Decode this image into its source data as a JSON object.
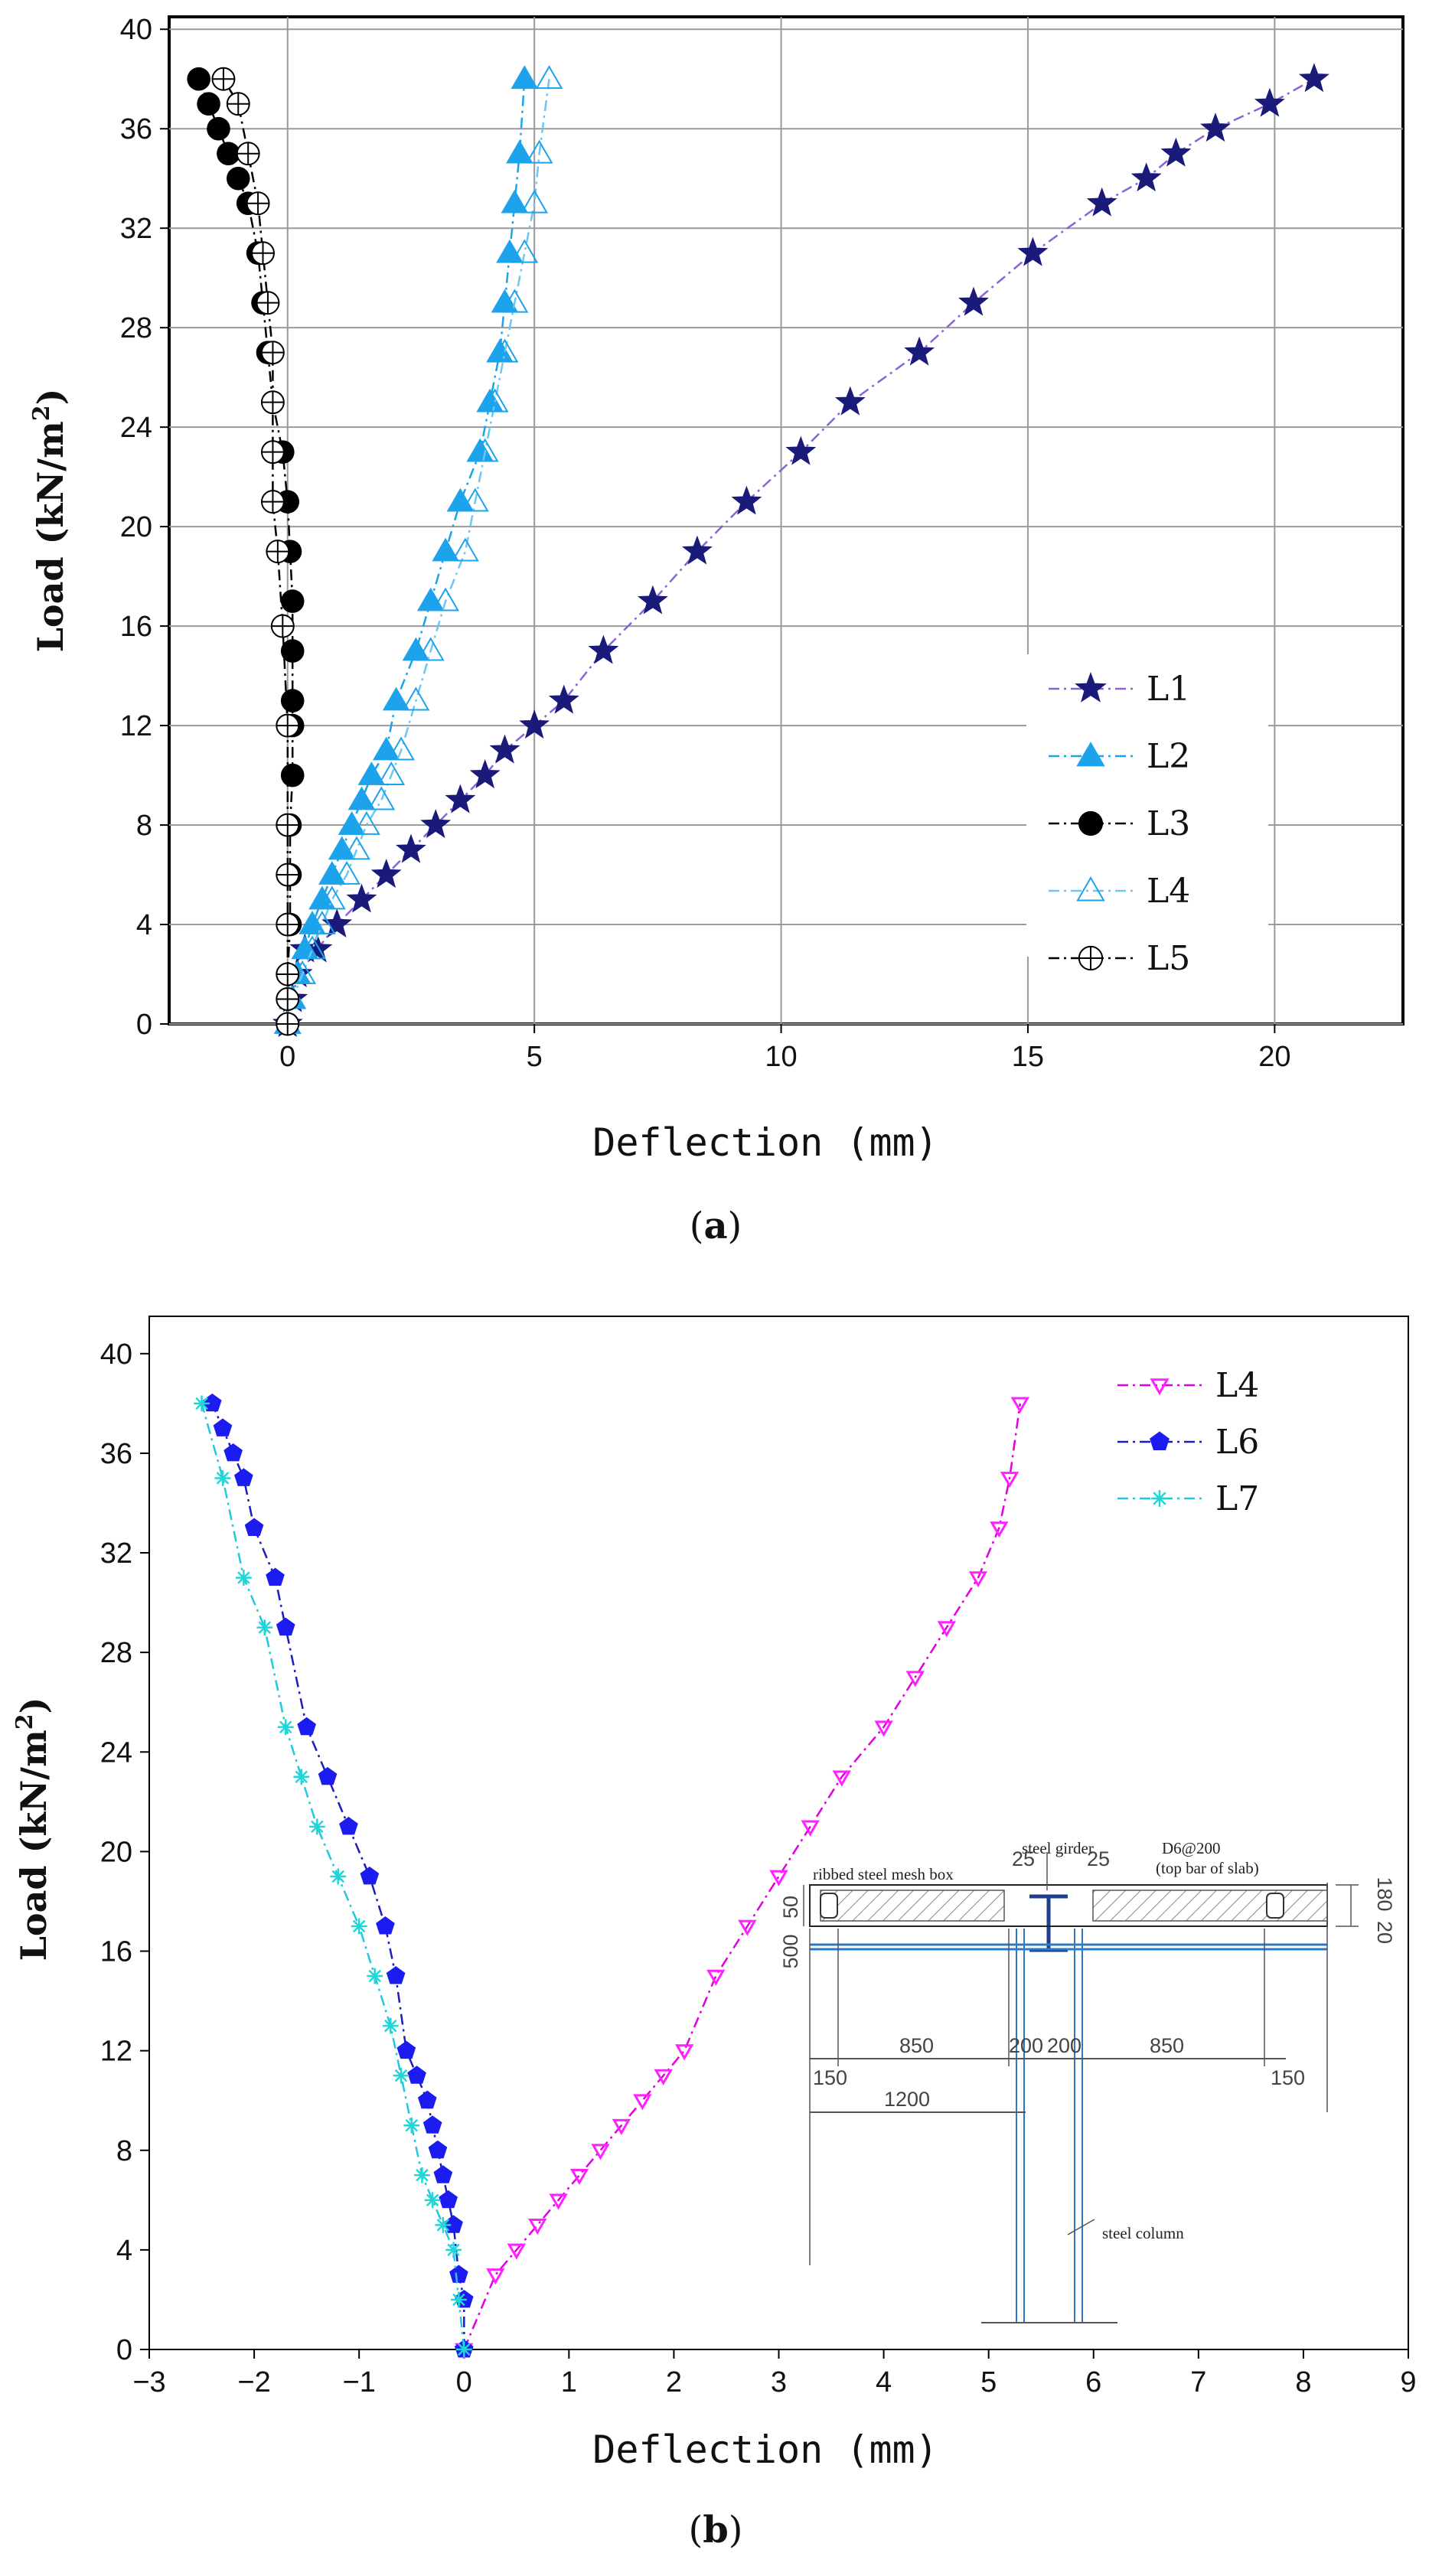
{
  "chart_data": [
    {
      "panel": "a",
      "type": "line",
      "xlabel": "Deflection (mm)",
      "ylabel": "Load (kN/m",
      "ylabel_sup": "2",
      "ylabel_end": ")",
      "xlim": [
        -2.4,
        22.6
      ],
      "ylim": [
        0,
        40.5
      ],
      "xticks": [
        0,
        5,
        10,
        15,
        20
      ],
      "yticks": [
        0,
        4,
        8,
        12,
        16,
        20,
        24,
        28,
        32,
        36,
        40
      ],
      "grid": true,
      "legend": "bottom-right",
      "series": [
        {
          "name": "L1",
          "color": "#1a1a7a",
          "line": "#8a64d6",
          "marker": "star",
          "x": [
            0,
            0.1,
            0.2,
            0.35,
            0.6,
            1.0,
            1.5,
            2.0,
            2.5,
            3.0,
            3.5,
            4.0,
            4.4,
            5.0,
            5.6,
            6.4,
            7.4,
            8.3,
            9.3,
            10.4,
            11.4,
            12.8,
            13.9,
            15.1,
            16.5,
            17.4,
            18.0,
            18.8,
            19.9,
            20.8
          ],
          "y": [
            0,
            1,
            2,
            3,
            3,
            4,
            5,
            6,
            7,
            8,
            9,
            10,
            11,
            12,
            13,
            15,
            17,
            19,
            21,
            23,
            25,
            27,
            29,
            31,
            33,
            34,
            35,
            36,
            37,
            38
          ]
        },
        {
          "name": "L2",
          "color": "#1ca3ec",
          "line": "#1ca3ec",
          "marker": "triangle",
          "x": [
            0,
            0.1,
            0.2,
            0.35,
            0.5,
            0.7,
            0.9,
            1.1,
            1.3,
            1.5,
            1.7,
            2.0,
            2.2,
            2.6,
            2.9,
            3.2,
            3.5,
            3.9,
            4.1,
            4.3,
            4.4,
            4.5,
            4.6,
            4.7,
            4.8
          ],
          "y": [
            0,
            1,
            2,
            3,
            4,
            5,
            6,
            7,
            8,
            9,
            10,
            11,
            13,
            15,
            17,
            19,
            21,
            23,
            25,
            27,
            29,
            31,
            33,
            35,
            38
          ]
        },
        {
          "name": "L3",
          "color": "#000000",
          "line": "#000000",
          "marker": "circle",
          "x": [
            0,
            0.0,
            0.0,
            0.05,
            0.05,
            0.05,
            0.1,
            0.1,
            0.1,
            0.1,
            0.1,
            0.05,
            0.0,
            -0.1,
            -0.3,
            -0.4,
            -0.5,
            -0.6,
            -0.8,
            -1.0,
            -1.2,
            -1.4,
            -1.6,
            -1.8
          ],
          "y": [
            0,
            1,
            2,
            4,
            6,
            8,
            10,
            12,
            13,
            15,
            17,
            19,
            21,
            23,
            25,
            27,
            29,
            31,
            33,
            34,
            35,
            36,
            37,
            38
          ]
        },
        {
          "name": "L4",
          "color": "#1ca3ec",
          "line": "#6cc6f2",
          "marker": "triangle-open",
          "x": [
            0,
            0.1,
            0.3,
            0.5,
            0.7,
            0.9,
            1.2,
            1.4,
            1.6,
            1.9,
            2.1,
            2.3,
            2.6,
            2.9,
            3.2,
            3.6,
            3.8,
            4.0,
            4.2,
            4.4,
            4.6,
            4.8,
            5.0,
            5.1,
            5.3
          ],
          "y": [
            0,
            1,
            2,
            3,
            4,
            5,
            6,
            7,
            8,
            9,
            10,
            11,
            13,
            15,
            17,
            19,
            21,
            23,
            25,
            27,
            29,
            31,
            33,
            35,
            38
          ]
        },
        {
          "name": "L5",
          "color": "#000000",
          "line": "#000000",
          "marker": "circle-plus",
          "x": [
            0,
            0.0,
            0.0,
            0.0,
            0.0,
            0.0,
            0.0,
            -0.1,
            -0.2,
            -0.3,
            -0.3,
            -0.3,
            -0.3,
            -0.4,
            -0.5,
            -0.6,
            -0.8,
            -1.0,
            -1.3
          ],
          "y": [
            0,
            1,
            2,
            4,
            6,
            8,
            12,
            16,
            19,
            21,
            23,
            25,
            27,
            29,
            31,
            33,
            35,
            37,
            38
          ]
        }
      ]
    },
    {
      "panel": "b",
      "type": "line",
      "xlabel": "Deflection (mm)",
      "ylabel": "Load (kN/m",
      "ylabel_sup": "2",
      "ylabel_end": ")",
      "xlim": [
        -3,
        9
      ],
      "ylim": [
        0,
        41.5
      ],
      "xticks": [
        -3,
        -2,
        -1,
        0,
        1,
        2,
        3,
        4,
        5,
        6,
        7,
        8,
        9
      ],
      "yticks": [
        0,
        4,
        8,
        12,
        16,
        20,
        24,
        28,
        32,
        36,
        40
      ],
      "grid": false,
      "legend": "top-right",
      "series": [
        {
          "name": "L4",
          "color": "#ff22ff",
          "line": "#e000e0",
          "marker": "triangle-down",
          "x": [
            0.0,
            0.3,
            0.5,
            0.7,
            0.9,
            1.1,
            1.3,
            1.5,
            1.7,
            1.9,
            2.1,
            2.4,
            2.7,
            3.0,
            3.3,
            3.6,
            4.0,
            4.3,
            4.6,
            4.9,
            5.1,
            5.2,
            5.3
          ],
          "y": [
            0,
            3,
            4,
            5,
            6,
            7,
            8,
            9,
            10,
            11,
            12,
            15,
            17,
            19,
            21,
            23,
            25,
            27,
            29,
            31,
            33,
            35,
            38
          ]
        },
        {
          "name": "L6",
          "color": "#1c1cf0",
          "line": "#1c1cbf",
          "marker": "pentagon",
          "x": [
            0.0,
            0.0,
            -0.05,
            -0.1,
            -0.15,
            -0.2,
            -0.25,
            -0.3,
            -0.35,
            -0.45,
            -0.55,
            -0.65,
            -0.75,
            -0.9,
            -1.1,
            -1.3,
            -1.5,
            -1.7,
            -1.8,
            -2.0,
            -2.1,
            -2.2,
            -2.3,
            -2.4
          ],
          "y": [
            0,
            2,
            3,
            5,
            6,
            7,
            8,
            9,
            10,
            11,
            12,
            15,
            17,
            19,
            21,
            23,
            25,
            29,
            31,
            33,
            35,
            36,
            37,
            38
          ]
        },
        {
          "name": "L7",
          "color": "#22d6d6",
          "line": "#22c8e0",
          "marker": "asterisk",
          "x": [
            0.0,
            -0.05,
            -0.1,
            -0.2,
            -0.3,
            -0.4,
            -0.5,
            -0.6,
            -0.7,
            -0.85,
            -1.0,
            -1.2,
            -1.4,
            -1.55,
            -1.7,
            -1.9,
            -2.1,
            -2.3,
            -2.5
          ],
          "y": [
            0,
            2,
            4,
            5,
            6,
            7,
            9,
            11,
            13,
            15,
            17,
            19,
            21,
            23,
            25,
            29,
            31,
            35,
            38
          ]
        }
      ]
    }
  ],
  "panel_labels": {
    "a": {
      "open": "(",
      "letter": "a",
      "close": ")"
    },
    "b": {
      "open": "(",
      "letter": "b",
      "close": ")"
    }
  },
  "inset": {
    "label_ribbed": "ribbed steel mesh box",
    "label_girder": "steel girder",
    "label_d6": "D6@200",
    "label_topbar": "(top bar of slab)",
    "label_column": "steel column",
    "dim_25_left": "25",
    "dim_25_right": "25",
    "dim_50": "50",
    "dim_500": "500",
    "dim_180": "180",
    "dim_20": "20",
    "dim_850_left": "850",
    "dim_850_right": "850",
    "dim_200_left": "200",
    "dim_200_right": "200",
    "dim_150_left": "150",
    "dim_150_right": "150",
    "dim_1200": "1200"
  }
}
